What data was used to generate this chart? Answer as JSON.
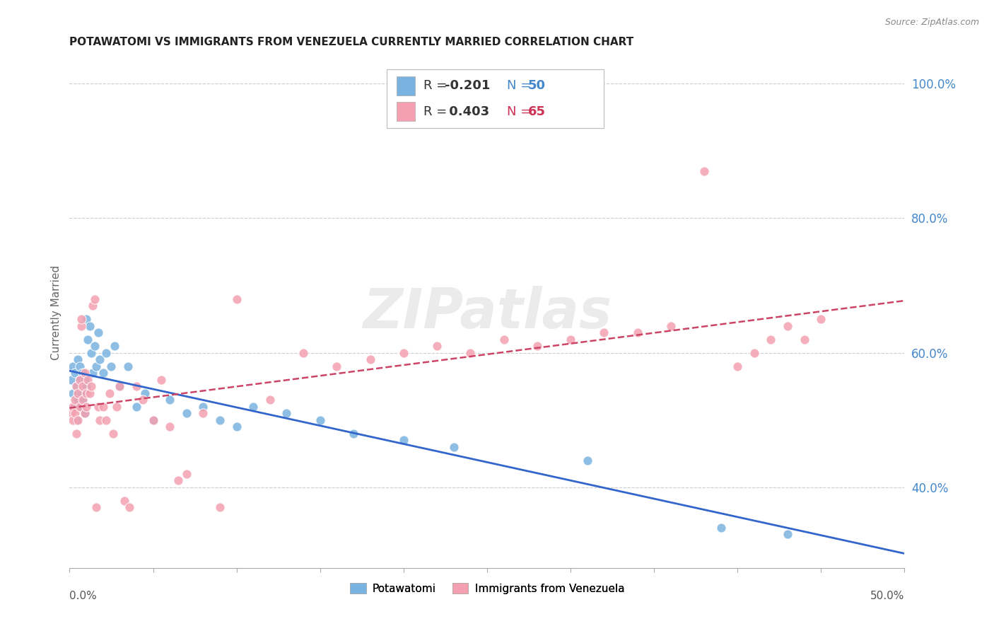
{
  "title": "POTAWATOMI VS IMMIGRANTS FROM VENEZUELA CURRENTLY MARRIED CORRELATION CHART",
  "source": "Source: ZipAtlas.com",
  "ylabel": "Currently Married",
  "ytick_labels": [
    "40.0%",
    "60.0%",
    "80.0%",
    "100.0%"
  ],
  "ytick_values": [
    0.4,
    0.6,
    0.8,
    1.0
  ],
  "xlim": [
    0.0,
    0.5
  ],
  "ylim": [
    0.28,
    1.04
  ],
  "blue_color": "#7ab3e0",
  "pink_color": "#f4a0b0",
  "blue_line_color": "#3366cc",
  "pink_line_color": "#cc4466",
  "watermark": "ZIPatlas",
  "blue_r": -0.201,
  "blue_n": 50,
  "pink_r": 0.403,
  "pink_n": 65,
  "legend_label_blue": "Potawatomi",
  "legend_label_pink": "Immigrants from Venezuela",
  "blue_scatter_x": [
    0.001,
    0.002,
    0.002,
    0.003,
    0.003,
    0.004,
    0.004,
    0.005,
    0.005,
    0.006,
    0.006,
    0.007,
    0.007,
    0.008,
    0.008,
    0.009,
    0.009,
    0.01,
    0.01,
    0.011,
    0.012,
    0.013,
    0.014,
    0.015,
    0.016,
    0.017,
    0.018,
    0.02,
    0.022,
    0.025,
    0.027,
    0.03,
    0.035,
    0.04,
    0.045,
    0.05,
    0.06,
    0.07,
    0.08,
    0.09,
    0.1,
    0.11,
    0.13,
    0.15,
    0.17,
    0.2,
    0.23,
    0.31,
    0.39,
    0.43
  ],
  "blue_scatter_y": [
    0.56,
    0.54,
    0.58,
    0.52,
    0.57,
    0.55,
    0.5,
    0.59,
    0.53,
    0.56,
    0.58,
    0.52,
    0.54,
    0.53,
    0.57,
    0.56,
    0.51,
    0.55,
    0.65,
    0.62,
    0.64,
    0.6,
    0.57,
    0.61,
    0.58,
    0.63,
    0.59,
    0.57,
    0.6,
    0.58,
    0.61,
    0.55,
    0.58,
    0.52,
    0.54,
    0.5,
    0.53,
    0.51,
    0.52,
    0.5,
    0.49,
    0.52,
    0.51,
    0.5,
    0.48,
    0.47,
    0.46,
    0.44,
    0.34,
    0.33
  ],
  "pink_scatter_x": [
    0.001,
    0.002,
    0.002,
    0.003,
    0.003,
    0.004,
    0.004,
    0.005,
    0.005,
    0.006,
    0.006,
    0.007,
    0.007,
    0.008,
    0.008,
    0.009,
    0.009,
    0.01,
    0.01,
    0.011,
    0.012,
    0.013,
    0.014,
    0.015,
    0.016,
    0.017,
    0.018,
    0.02,
    0.022,
    0.024,
    0.026,
    0.028,
    0.03,
    0.033,
    0.036,
    0.04,
    0.044,
    0.05,
    0.055,
    0.06,
    0.065,
    0.07,
    0.08,
    0.09,
    0.1,
    0.12,
    0.14,
    0.16,
    0.18,
    0.2,
    0.22,
    0.24,
    0.26,
    0.28,
    0.3,
    0.32,
    0.34,
    0.36,
    0.38,
    0.4,
    0.41,
    0.42,
    0.43,
    0.44,
    0.45
  ],
  "pink_scatter_y": [
    0.51,
    0.52,
    0.5,
    0.53,
    0.51,
    0.55,
    0.48,
    0.54,
    0.5,
    0.56,
    0.52,
    0.64,
    0.65,
    0.53,
    0.55,
    0.57,
    0.51,
    0.54,
    0.52,
    0.56,
    0.54,
    0.55,
    0.67,
    0.68,
    0.37,
    0.52,
    0.5,
    0.52,
    0.5,
    0.54,
    0.48,
    0.52,
    0.55,
    0.38,
    0.37,
    0.55,
    0.53,
    0.5,
    0.56,
    0.49,
    0.41,
    0.42,
    0.51,
    0.37,
    0.68,
    0.53,
    0.6,
    0.58,
    0.59,
    0.6,
    0.61,
    0.6,
    0.62,
    0.61,
    0.62,
    0.63,
    0.63,
    0.64,
    0.87,
    0.58,
    0.6,
    0.62,
    0.64,
    0.62,
    0.65
  ]
}
